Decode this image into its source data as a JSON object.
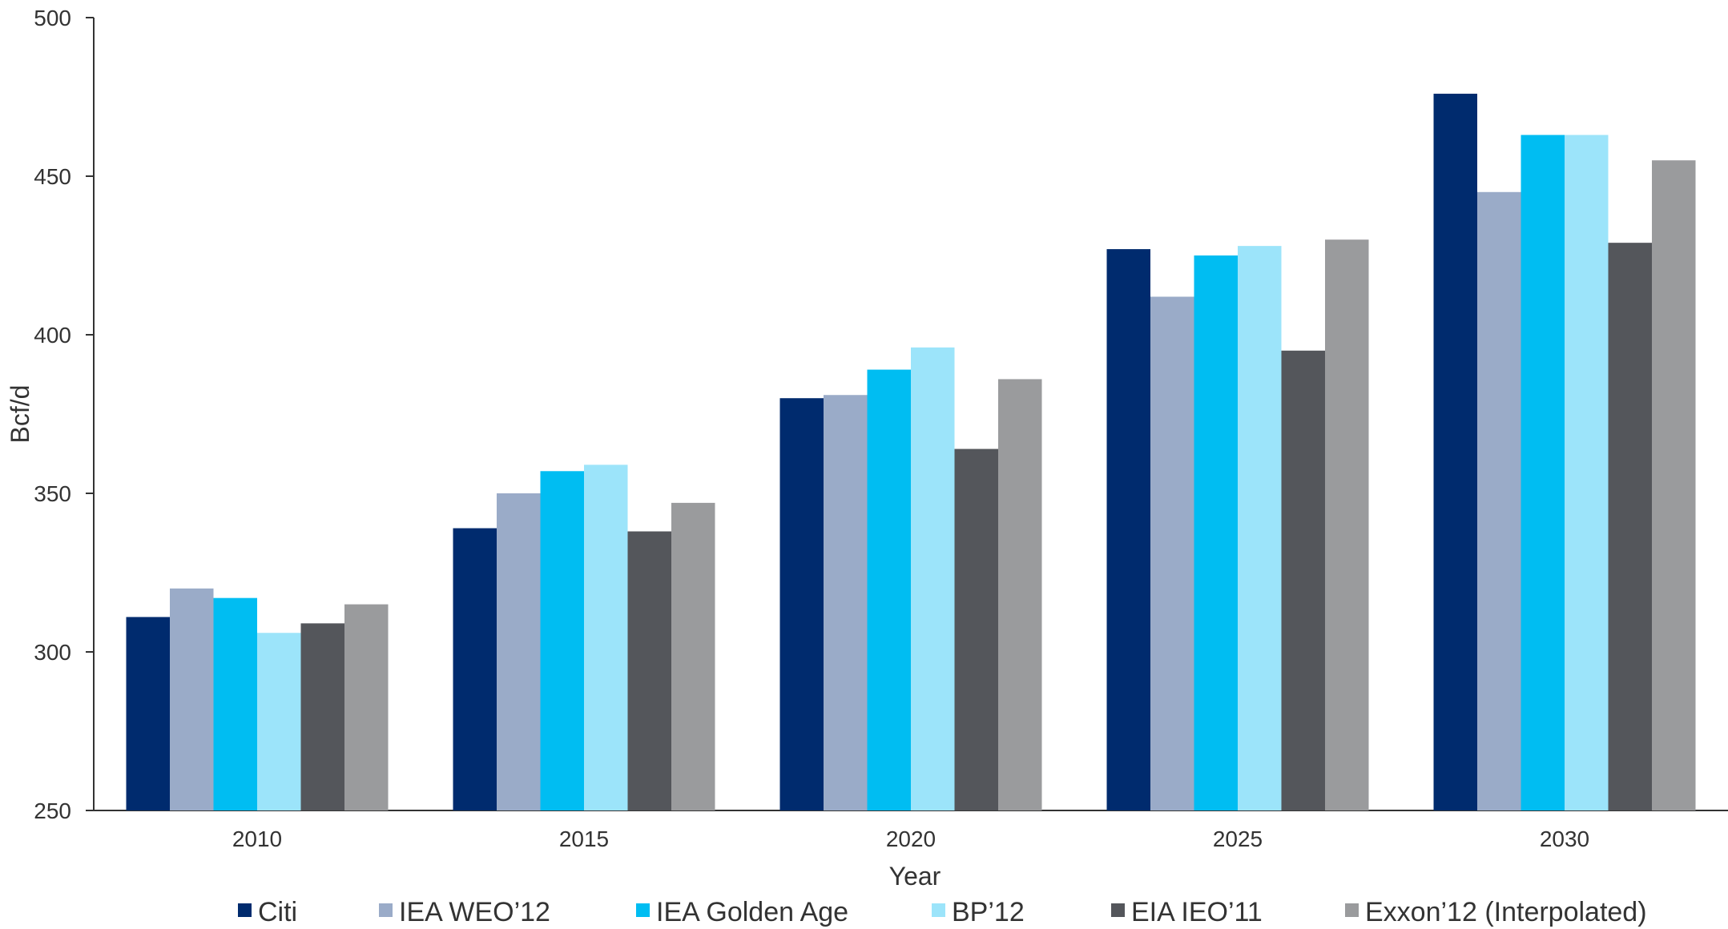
{
  "chart_data": {
    "type": "bar",
    "title": "",
    "xlabel": "Year",
    "ylabel": "Bcf/d",
    "ylim": [
      250,
      500
    ],
    "yticks": [
      250,
      300,
      350,
      400,
      450,
      500
    ],
    "grid": false,
    "legend_position": "bottom",
    "categories": [
      "2010",
      "2015",
      "2020",
      "2025",
      "2030"
    ],
    "series": [
      {
        "name": "Citi",
        "color": "#002b6e",
        "values": [
          311,
          339,
          380,
          427,
          476
        ]
      },
      {
        "name": "IEA WEO’12",
        "color": "#9aabc8",
        "values": [
          320,
          350,
          381,
          412,
          445
        ]
      },
      {
        "name": "IEA Golden Age",
        "color": "#00bdf2",
        "values": [
          317,
          357,
          389,
          425,
          463
        ]
      },
      {
        "name": "BP’12",
        "color": "#9ce4fa",
        "values": [
          306,
          359,
          396,
          428,
          463
        ]
      },
      {
        "name": "EIA IEO’11",
        "color": "#54565b",
        "values": [
          309,
          338,
          364,
          395,
          429
        ]
      },
      {
        "name": "Exxon’12 (Interpolated)",
        "color": "#9a9b9d",
        "values": [
          315,
          347,
          386,
          430,
          455
        ]
      }
    ]
  }
}
